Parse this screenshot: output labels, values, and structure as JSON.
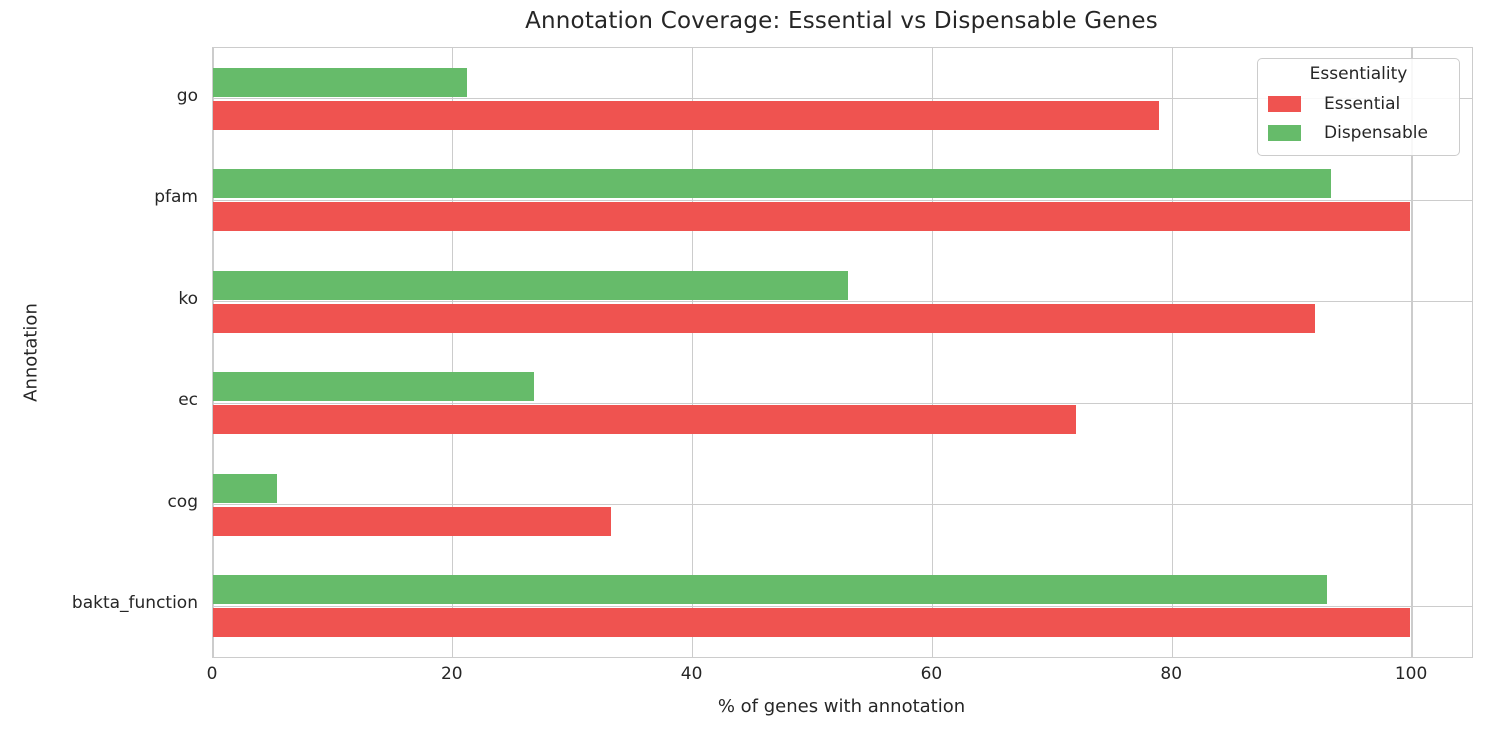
{
  "chart_data": {
    "type": "bar",
    "orientation": "horizontal",
    "title": "Annotation Coverage: Essential vs Dispensable Genes",
    "xlabel": "% of genes with annotation",
    "ylabel": "Annotation",
    "categories": [
      "go",
      "pfam",
      "ko",
      "ec",
      "cog",
      "bakta_function"
    ],
    "series": [
      {
        "name": "Essential",
        "color": "#ef5350",
        "values": [
          78.9,
          99.8,
          91.9,
          72.0,
          33.2,
          99.8
        ]
      },
      {
        "name": "Dispensable",
        "color": "#66bb6a",
        "values": [
          21.2,
          93.2,
          53.0,
          26.8,
          5.3,
          92.9
        ]
      }
    ],
    "xlim": [
      0,
      105
    ],
    "xticks": [
      0,
      20,
      40,
      60,
      80,
      100
    ],
    "grid": true,
    "legend_title": "Essentiality",
    "legend_position": "upper right",
    "colors": {
      "grid": "#cccccc",
      "text": "#262626",
      "background": "#ffffff"
    }
  }
}
